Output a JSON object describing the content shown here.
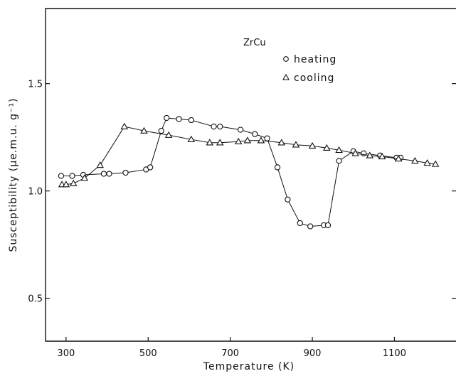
{
  "chart_data": {
    "type": "line",
    "title": "ZrCu",
    "xlabel": "Temperature (K)",
    "ylabel": "Susceptibility (µe.m.u. g⁻¹)",
    "xlim": [
      250,
      1250
    ],
    "ylim": [
      0.3,
      1.85
    ],
    "x_ticks": [
      300,
      500,
      700,
      900,
      1100
    ],
    "x_tick_labels": [
      "300",
      "500",
      "700",
      "900",
      "1100"
    ],
    "y_ticks": [
      0.5,
      1.0,
      1.5
    ],
    "y_tick_labels": [
      "0.5",
      "1.0",
      "1.5"
    ],
    "grid": false,
    "legend_position": "top-right",
    "series": [
      {
        "name": "heating",
        "marker": "circle",
        "points": [
          [
            288,
            1.07
          ],
          [
            315,
            1.07
          ],
          [
            342,
            1.075
          ],
          [
            392,
            1.08
          ],
          [
            405,
            1.08
          ],
          [
            445,
            1.085
          ],
          [
            495,
            1.1
          ],
          [
            505,
            1.11
          ],
          [
            532,
            1.28
          ],
          [
            545,
            1.34
          ],
          [
            575,
            1.335
          ],
          [
            605,
            1.33
          ],
          [
            660,
            1.3
          ],
          [
            675,
            1.3
          ],
          [
            725,
            1.285
          ],
          [
            760,
            1.265
          ],
          [
            790,
            1.245
          ],
          [
            815,
            1.11
          ],
          [
            840,
            0.96
          ],
          [
            870,
            0.85
          ],
          [
            895,
            0.835
          ],
          [
            928,
            0.84
          ],
          [
            938,
            0.84
          ],
          [
            965,
            1.14
          ],
          [
            1000,
            1.185
          ],
          [
            1025,
            1.175
          ],
          [
            1065,
            1.165
          ],
          [
            1105,
            1.155
          ],
          [
            1115,
            1.155
          ]
        ]
      },
      {
        "name": "cooling",
        "marker": "triangle",
        "points": [
          [
            290,
            1.03
          ],
          [
            300,
            1.03
          ],
          [
            318,
            1.035
          ],
          [
            345,
            1.06
          ],
          [
            383,
            1.12
          ],
          [
            442,
            1.3
          ],
          [
            490,
            1.28
          ],
          [
            550,
            1.26
          ],
          [
            605,
            1.24
          ],
          [
            650,
            1.225
          ],
          [
            675,
            1.225
          ],
          [
            720,
            1.23
          ],
          [
            742,
            1.235
          ],
          [
            775,
            1.235
          ],
          [
            825,
            1.225
          ],
          [
            860,
            1.215
          ],
          [
            900,
            1.21
          ],
          [
            935,
            1.2
          ],
          [
            965,
            1.19
          ],
          [
            1005,
            1.175
          ],
          [
            1040,
            1.165
          ],
          [
            1070,
            1.16
          ],
          [
            1110,
            1.15
          ],
          [
            1150,
            1.14
          ],
          [
            1180,
            1.13
          ],
          [
            1200,
            1.125
          ]
        ]
      }
    ]
  }
}
